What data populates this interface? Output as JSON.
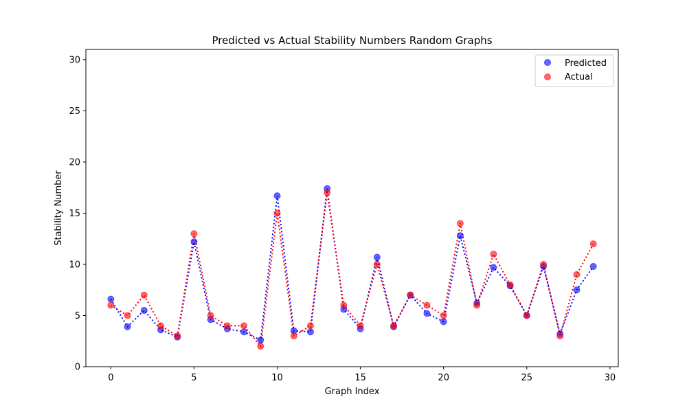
{
  "chart_data": {
    "type": "scatter",
    "title": "Predicted vs Actual Stability Numbers Random Graphs",
    "xlabel": "Graph Index",
    "ylabel": "Stability Number",
    "xlim": [
      -1.5,
      30.5
    ],
    "ylim": [
      0,
      31
    ],
    "xticks": [
      0,
      5,
      10,
      15,
      20,
      25,
      30
    ],
    "yticks": [
      0,
      5,
      10,
      15,
      20,
      25,
      30
    ],
    "grid": false,
    "legend_position": "top-right",
    "x": [
      0,
      1,
      2,
      3,
      4,
      5,
      6,
      7,
      8,
      9,
      10,
      11,
      12,
      13,
      14,
      15,
      16,
      17,
      18,
      19,
      20,
      21,
      22,
      23,
      24,
      25,
      26,
      27,
      28,
      29
    ],
    "series": [
      {
        "name": "Predicted",
        "color": "#0000ff",
        "values": [
          6.6,
          3.9,
          5.5,
          3.6,
          2.9,
          12.2,
          4.6,
          3.7,
          3.4,
          2.6,
          16.7,
          3.5,
          3.4,
          17.4,
          5.6,
          3.7,
          10.7,
          3.9,
          7.0,
          5.2,
          4.4,
          12.8,
          6.2,
          9.7,
          7.9,
          5.0,
          9.8,
          3.2,
          7.5,
          9.8
        ]
      },
      {
        "name": "Actual",
        "color": "#ff0000",
        "values": [
          6,
          5,
          7,
          4,
          3,
          13,
          5,
          4,
          4,
          2,
          15,
          3,
          4,
          17,
          6,
          4,
          10,
          4,
          7,
          6,
          5,
          14,
          6,
          11,
          8,
          5,
          10,
          3,
          9,
          12
        ]
      }
    ]
  }
}
